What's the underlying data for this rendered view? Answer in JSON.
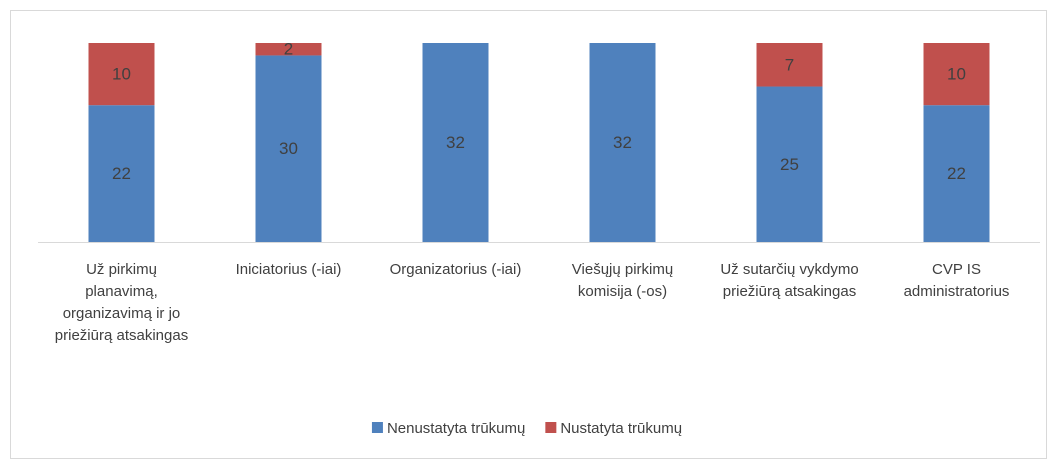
{
  "chart_data": {
    "type": "stacked_bar",
    "categories": [
      "Už pirkimų planavimą, organizavimą ir jo priežiūrą atsakingas",
      "Iniciatorius (-iai)",
      "Organizatorius (-iai)",
      "Viešųjų pirkimų komisija (-os)",
      "Už sutarčių vykdymo priežiūrą atsakingas",
      "CVP IS administratorius"
    ],
    "series": [
      {
        "name": "Nenustatyta trūkumų",
        "color": "#4f81bd",
        "values": [
          22,
          30,
          32,
          32,
          25,
          22
        ]
      },
      {
        "name": "Nustatyta trūkumų",
        "color": "#c0504d",
        "values": [
          10,
          2,
          0,
          0,
          7,
          10
        ]
      }
    ],
    "ylim": [
      0,
      32
    ],
    "legend": "bottom"
  }
}
